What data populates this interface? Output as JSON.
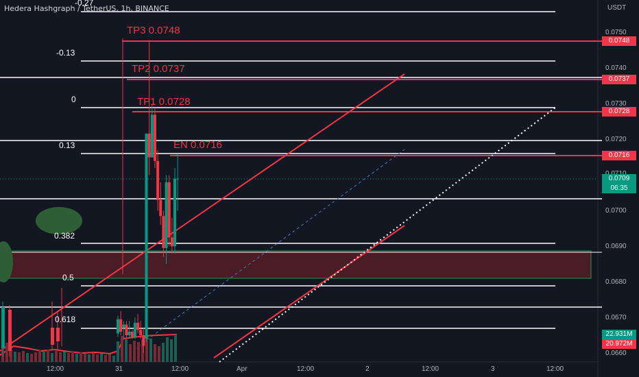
{
  "header": {
    "title": "Hedera Hashgraph / TetherUS, 1h, BINANCE",
    "currency": "USDT"
  },
  "colors": {
    "background": "#131722",
    "bull": "#089981",
    "bear": "#f23645",
    "target_line": "#f23645",
    "fib_line": "#ffffff",
    "zone_fill": "#4a1c26",
    "zone_border": "#3a8a4a",
    "blob": "#2e5e35"
  },
  "price_scale": {
    "ticks": [
      "0.0750",
      "0.0740",
      "0.0730",
      "0.0720",
      "0.0700",
      "0.0690",
      "0.0680",
      "0.0670",
      "0.0660"
    ],
    "top_partial": "0.0710"
  },
  "time_axis": {
    "labels": [
      "12:00",
      "31",
      "12:00",
      "Apr",
      "12:00",
      "2",
      "12:00",
      "3",
      "12:00"
    ]
  },
  "targets": [
    {
      "label": "TP3 0.0748",
      "price": "0.0748"
    },
    {
      "label": "TP2 0.0737",
      "price": "0.0737"
    },
    {
      "label": "TP1 0.0728",
      "price": "0.0728"
    },
    {
      "label": "EN 0.0716",
      "price": "0.0716"
    }
  ],
  "fib_levels": [
    {
      "label": "-0.27"
    },
    {
      "label": "-0.13"
    },
    {
      "label": "0"
    },
    {
      "label": "0.13"
    },
    {
      "label": "0.382"
    },
    {
      "label": "0.5"
    },
    {
      "label": "0.618"
    }
  ],
  "current_price": {
    "value": "0.0709",
    "countdown": "06:35"
  },
  "volume": {
    "value_1": "22.931M",
    "value_2": "20.972M"
  },
  "chart_data": {
    "type": "candlestick",
    "title": "Hedera Hashgraph / TetherUS, 1h, BINANCE",
    "ylim": [
      0.0656,
      0.0758
    ],
    "series": [
      {
        "name": "HBARUSDT",
        "candles": [
          {
            "t": 0,
            "o": 0.06655,
            "h": 0.06705,
            "l": 0.06645,
            "c": 0.06695
          },
          {
            "t": 1,
            "o": 0.06695,
            "h": 0.06718,
            "l": 0.0665,
            "c": 0.0666
          },
          {
            "t": 2,
            "o": 0.0667,
            "h": 0.0669,
            "l": 0.0664,
            "c": 0.0668
          },
          {
            "t": 3,
            "o": 0.0668,
            "h": 0.0669,
            "l": 0.0664,
            "c": 0.0665
          },
          {
            "t": 4,
            "o": 0.0665,
            "h": 0.0669,
            "l": 0.0664,
            "c": 0.0666
          },
          {
            "t": 5,
            "o": 0.0666,
            "h": 0.06665,
            "l": 0.0664,
            "c": 0.06645
          },
          {
            "t": 6,
            "o": 0.06645,
            "h": 0.067,
            "l": 0.0664,
            "c": 0.06685
          },
          {
            "t": 7,
            "o": 0.06685,
            "h": 0.0671,
            "l": 0.06655,
            "c": 0.06665
          },
          {
            "t": 8,
            "o": 0.06665,
            "h": 0.0669,
            "l": 0.0664,
            "c": 0.0665
          },
          {
            "t": 9,
            "o": 0.0665,
            "h": 0.0667,
            "l": 0.066,
            "c": 0.0662
          },
          {
            "t": 10,
            "o": 0.0664,
            "h": 0.07217,
            "l": 0.0663,
            "c": 0.07217
          },
          {
            "t": 11,
            "o": 0.07217,
            "h": 0.0748,
            "l": 0.071,
            "c": 0.0715
          },
          {
            "t": 12,
            "o": 0.0715,
            "h": 0.073,
            "l": 0.0715,
            "c": 0.0727
          },
          {
            "t": 13,
            "o": 0.0727,
            "h": 0.0729,
            "l": 0.0712,
            "c": 0.0714
          },
          {
            "t": 14,
            "o": 0.0714,
            "h": 0.0717,
            "l": 0.07,
            "c": 0.0703
          },
          {
            "t": 15,
            "o": 0.0703,
            "h": 0.0708,
            "l": 0.0696,
            "c": 0.06985
          },
          {
            "t": 16,
            "o": 0.06985,
            "h": 0.07,
            "l": 0.0687,
            "c": 0.06895
          },
          {
            "t": 17,
            "o": 0.06895,
            "h": 0.071,
            "l": 0.0685,
            "c": 0.0708
          },
          {
            "t": 18,
            "o": 0.0708,
            "h": 0.071,
            "l": 0.069,
            "c": 0.06925
          },
          {
            "t": 19,
            "o": 0.06925,
            "h": 0.0698,
            "l": 0.0688,
            "c": 0.069
          },
          {
            "t": 20,
            "o": 0.069,
            "h": 0.0712,
            "l": 0.0688,
            "c": 0.0709
          },
          {
            "t": 21,
            "o": 0.0709,
            "h": 0.0716,
            "l": 0.07,
            "c": 0.0709
          }
        ]
      }
    ]
  }
}
